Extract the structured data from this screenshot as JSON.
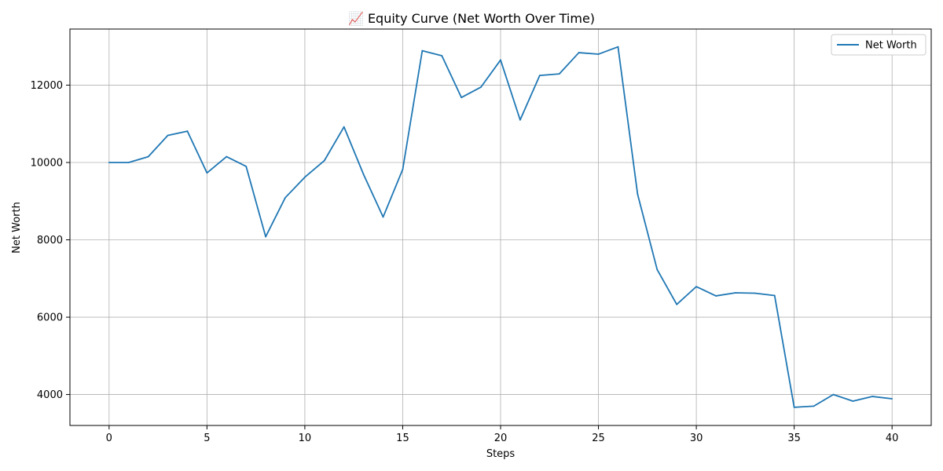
{
  "chart_data": {
    "type": "line",
    "title": "📈 Equity Curve (Net Worth Over Time)",
    "xlabel": "Steps",
    "ylabel": "Net Worth",
    "xlim": [
      -2,
      42
    ],
    "ylim": [
      3200,
      13450
    ],
    "xticks": [
      0,
      5,
      10,
      15,
      20,
      25,
      30,
      35,
      40
    ],
    "yticks": [
      4000,
      6000,
      8000,
      10000,
      12000
    ],
    "grid": true,
    "legend_position": "top-right",
    "series": [
      {
        "name": "Net Worth",
        "color": "#1f77b4",
        "x": [
          0,
          1,
          2,
          3,
          4,
          5,
          6,
          7,
          8,
          9,
          10,
          11,
          12,
          13,
          14,
          15,
          16,
          17,
          18,
          19,
          20,
          21,
          22,
          23,
          24,
          25,
          26,
          27,
          28,
          29,
          30,
          31,
          32,
          33,
          34,
          35,
          36,
          37,
          38,
          39,
          40
        ],
        "values": [
          10000,
          10000,
          10150,
          10700,
          10810,
          9730,
          10150,
          9900,
          8080,
          9090,
          9620,
          10050,
          10920,
          9690,
          8590,
          9820,
          12890,
          12760,
          11680,
          11950,
          12650,
          11100,
          12250,
          12290,
          12840,
          12800,
          12990,
          9180,
          7230,
          6330,
          6790,
          6550,
          6630,
          6620,
          6560,
          3670,
          3700,
          4000,
          3830,
          3950,
          3890
        ]
      }
    ]
  }
}
